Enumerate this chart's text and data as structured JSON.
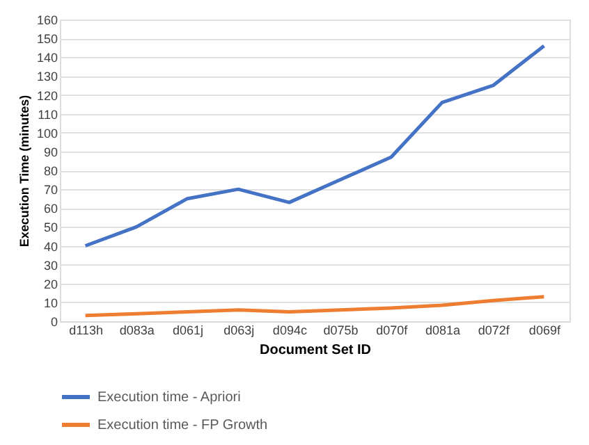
{
  "chart_data": {
    "type": "line",
    "xlabel": "Document Set ID",
    "ylabel": "Execution Time (minutes)",
    "categories": [
      "d113h",
      "d083a",
      "d061j",
      "d063j",
      "d094c",
      "d075b",
      "d070f",
      "d081a",
      "d072f",
      "d069f"
    ],
    "series": [
      {
        "name": "Execution time - Apriori",
        "color": "#4472c4",
        "values": [
          40,
          50,
          65,
          70,
          63,
          75,
          87,
          116,
          125,
          146
        ]
      },
      {
        "name": "Execution time - FP Growth",
        "color": "#ed7d31",
        "values": [
          3,
          4,
          5,
          6,
          5,
          6,
          7,
          8.5,
          11,
          13
        ]
      }
    ],
    "ylim": [
      0,
      160
    ],
    "yticks": [
      0,
      10,
      20,
      30,
      40,
      50,
      60,
      70,
      80,
      90,
      100,
      110,
      120,
      130,
      140,
      150,
      160
    ],
    "grid": "y",
    "legend": "bottom",
    "marker": "none",
    "line_style": "solid"
  }
}
